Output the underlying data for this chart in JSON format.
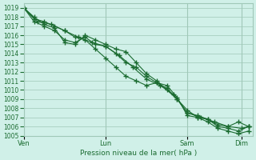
{
  "title": "",
  "xlabel": "Pression niveau de la mer( hPa )",
  "ylabel": "",
  "background_color": "#d0f0e8",
  "grid_color": "#a0c8b8",
  "line_color": "#1a6b30",
  "ylim": [
    1005,
    1019.5
  ],
  "yticks": [
    1005,
    1006,
    1007,
    1008,
    1009,
    1010,
    1011,
    1012,
    1013,
    1014,
    1015,
    1016,
    1017,
    1018,
    1019
  ],
  "day_labels": [
    "Ven",
    "Lun",
    "Sam",
    "Dim"
  ],
  "day_positions": [
    0,
    2,
    4,
    5.33
  ],
  "series1_x": [
    0,
    0.25,
    0.5,
    0.75,
    1.0,
    1.25,
    1.5,
    1.75,
    2.0,
    2.25,
    2.5,
    2.75,
    3.0,
    3.25,
    3.5,
    3.75,
    4.0,
    4.25,
    4.5,
    4.75,
    5.0,
    5.25,
    5.5
  ],
  "series1_y": [
    1019,
    1018.0,
    1017.2,
    1016.8,
    1015.2,
    1015.0,
    1016.0,
    1015.5,
    1015.0,
    1014.5,
    1014.2,
    1013.0,
    1011.8,
    1011.0,
    1010.0,
    1009.0,
    1007.5,
    1007.2,
    1006.8,
    1006.2,
    1006.0,
    1006.5,
    1006.0
  ],
  "series2_x": [
    0,
    0.25,
    0.5,
    0.75,
    1.0,
    1.25,
    1.5,
    1.75,
    2.0,
    2.25,
    2.5,
    2.75,
    3.0,
    3.25,
    3.5,
    3.75,
    4.0,
    4.25,
    4.5,
    4.75,
    5.0,
    5.25,
    5.5
  ],
  "series2_y": [
    1019,
    1017.5,
    1017.0,
    1016.5,
    1015.5,
    1015.2,
    1015.8,
    1015.0,
    1014.8,
    1014.0,
    1013.0,
    1012.5,
    1011.5,
    1010.8,
    1010.5,
    1009.2,
    1007.2,
    1007.0,
    1006.5,
    1005.8,
    1005.5,
    1005.2,
    1005.5
  ],
  "series3_x": [
    0,
    0.25,
    0.5,
    0.75,
    1.0,
    1.25,
    1.5,
    1.75,
    2.0,
    2.25,
    2.5,
    2.75,
    3.0,
    3.25,
    3.5,
    3.75,
    4.0,
    4.25,
    4.5,
    4.75,
    5.0,
    5.25,
    5.5
  ],
  "series3_y": [
    1019,
    1017.8,
    1017.5,
    1017.0,
    1016.5,
    1015.8,
    1015.5,
    1014.5,
    1013.5,
    1012.5,
    1011.5,
    1011.0,
    1010.5,
    1010.8,
    1010.2,
    1009.0,
    1007.8,
    1007.0,
    1006.8,
    1006.0,
    1005.8,
    1005.5,
    1006.0
  ],
  "series4_x": [
    0,
    0.33,
    0.67,
    1.0,
    1.33,
    1.67,
    2.0,
    2.33,
    2.67,
    3.0,
    3.33,
    3.67,
    4.0,
    4.33,
    4.67,
    5.0,
    5.33,
    5.5
  ],
  "series4_y": [
    1019,
    1017.5,
    1017.2,
    1016.5,
    1015.8,
    1015.2,
    1014.8,
    1013.8,
    1012.5,
    1011.2,
    1010.5,
    1009.5,
    1007.5,
    1007.0,
    1006.5,
    1006.0,
    1005.8,
    1006.0
  ],
  "xlim": [
    0,
    5.6
  ],
  "figsize": [
    3.2,
    2.0
  ],
  "dpi": 100
}
